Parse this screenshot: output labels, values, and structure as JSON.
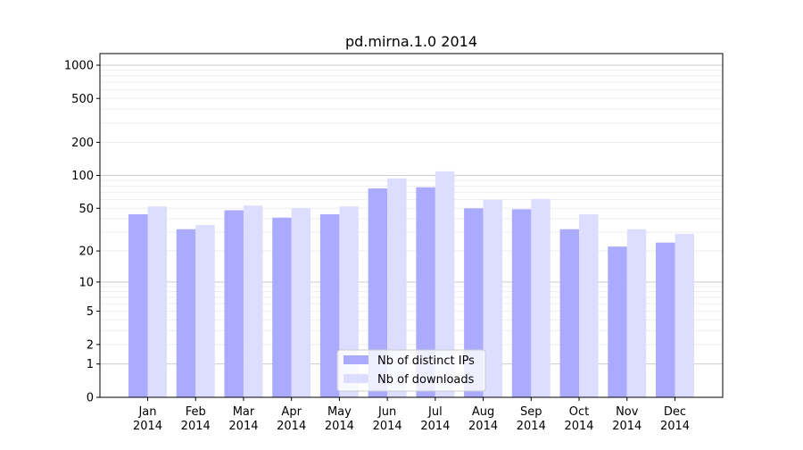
{
  "chart_data": {
    "type": "bar",
    "title": "pd.mirna.1.0 2014",
    "xlabel": "",
    "ylabel": "",
    "yscale": "symlog (log10(1+y))",
    "ylim": [
      0,
      1273
    ],
    "categories": [
      "Jan\n2014",
      "Feb\n2014",
      "Mar\n2014",
      "Apr\n2014",
      "May\n2014",
      "Jun\n2014",
      "Jul\n2014",
      "Aug\n2014",
      "Sep\n2014",
      "Oct\n2014",
      "Nov\n2014",
      "Dec\n2014"
    ],
    "yticks": [
      0,
      1,
      2,
      5,
      10,
      20,
      50,
      100,
      200,
      500,
      1000
    ],
    "series": [
      {
        "name": "Nb of distinct IPs",
        "color": "#aaaaff",
        "values": [
          44,
          32,
          48,
          41,
          44,
          76,
          78,
          50,
          49,
          32,
          22,
          24
        ]
      },
      {
        "name": "Nb of downloads",
        "color": "#ddddff",
        "values": [
          52,
          35,
          53,
          50,
          52,
          94,
          109,
          60,
          61,
          44,
          32,
          29
        ]
      }
    ],
    "legend": "lower-center",
    "grid": true
  }
}
